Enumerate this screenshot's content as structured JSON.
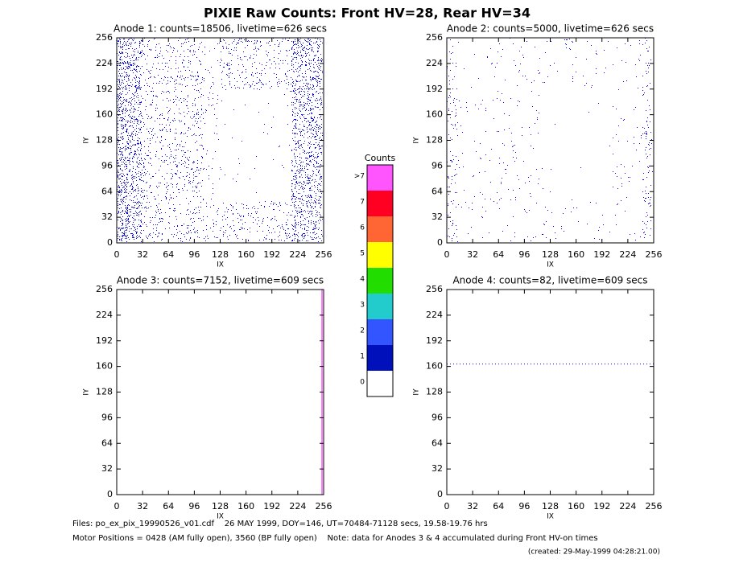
{
  "title": "PIXIE Raw Counts:  Front HV=28, Rear HV=34",
  "chart_data": [
    {
      "type": "heatmap",
      "title": "Anode 1: counts=18506, livetime=626 secs",
      "xlabel": "IX",
      "ylabel": "IY",
      "xlim": [
        0,
        256
      ],
      "ylim": [
        0,
        256
      ],
      "xticks": [
        0,
        32,
        64,
        96,
        128,
        160,
        192,
        224,
        256
      ],
      "yticks": [
        0,
        32,
        64,
        96,
        128,
        160,
        192,
        224,
        256
      ]
    },
    {
      "type": "heatmap",
      "title": "Anode 2: counts=5000, livetime=626 secs",
      "xlabel": "IX",
      "ylabel": "IY",
      "xlim": [
        0,
        256
      ],
      "ylim": [
        0,
        256
      ],
      "xticks": [
        0,
        32,
        64,
        96,
        128,
        160,
        192,
        224,
        256
      ],
      "yticks": [
        0,
        32,
        64,
        96,
        128,
        160,
        192,
        224,
        256
      ]
    },
    {
      "type": "heatmap",
      "title": "Anode 3: counts=7152, livetime=609 secs",
      "xlabel": "IX",
      "ylabel": "IY",
      "xlim": [
        0,
        256
      ],
      "ylim": [
        0,
        256
      ],
      "xticks": [
        0,
        32,
        64,
        96,
        128,
        160,
        192,
        224,
        256
      ],
      "yticks": [
        0,
        32,
        64,
        96,
        128,
        160,
        192,
        224,
        256
      ]
    },
    {
      "type": "heatmap",
      "title": "Anode 4: counts=82, livetime=609 secs",
      "xlabel": "IX",
      "ylabel": "IY",
      "xlim": [
        0,
        256
      ],
      "ylim": [
        0,
        256
      ],
      "xticks": [
        0,
        32,
        64,
        96,
        128,
        160,
        192,
        224,
        256
      ],
      "yticks": [
        0,
        32,
        64,
        96,
        128,
        160,
        192,
        224,
        256
      ]
    }
  ],
  "colorbar": {
    "title": "Counts",
    "levels": [
      {
        "label": "0",
        "color": "#ffffff"
      },
      {
        "label": "1",
        "color": "#0011bb"
      },
      {
        "label": "2",
        "color": "#3355ff"
      },
      {
        "label": "3",
        "color": "#22cccc"
      },
      {
        "label": "4",
        "color": "#22dd00"
      },
      {
        "label": "5",
        "color": "#ffff00"
      },
      {
        "label": "6",
        "color": "#ff6633"
      },
      {
        "label": "7",
        "color": "#ff0022"
      },
      {
        "label": ">7",
        "color": "#ff55ff"
      }
    ]
  },
  "footer": [
    "Files: po_ex_pix_19990526_v01.cdf    26 MAY 1999, DOY=146, UT=70484-71128 secs, 19.58-19.76 hrs",
    "Motor Positions = 0428 (AM fully open), 3560 (BP fully open)    Note: data for Anodes 3 & 4 accumulated during Front HV-on times",
    "(created: 29-May-1999 04:28:21.00)"
  ]
}
